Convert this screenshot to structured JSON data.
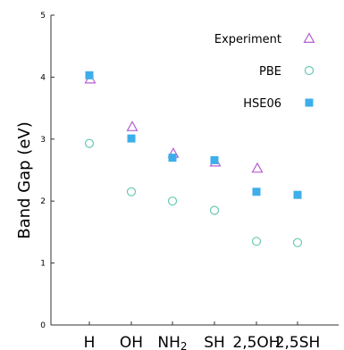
{
  "chart_data": {
    "type": "scatter",
    "title": "",
    "xlabel": "",
    "ylabel": "Band Gap (eV)",
    "categories": [
      "H",
      "OH",
      "NH2",
      "SH",
      "2,5OH",
      "2,5SH"
    ],
    "ylim": [
      0,
      5
    ],
    "yticks": [
      "0",
      "1",
      "2",
      "3",
      "4",
      "5"
    ],
    "grid": false,
    "legend_position": "top-right",
    "series": [
      {
        "name": "Experiment",
        "marker": "triangle-open",
        "color": "#b65fcf",
        "values": [
          3.97,
          3.2,
          2.77,
          2.63,
          2.53,
          null
        ]
      },
      {
        "name": "PBE",
        "marker": "circle-open",
        "color": "#66c9b3",
        "values": [
          2.93,
          2.15,
          2.0,
          1.85,
          1.35,
          1.33
        ]
      },
      {
        "name": "HSE06",
        "marker": "square-filled",
        "color": "#3daee9",
        "values": [
          4.03,
          3.01,
          2.7,
          2.66,
          2.15,
          2.1
        ]
      }
    ]
  }
}
